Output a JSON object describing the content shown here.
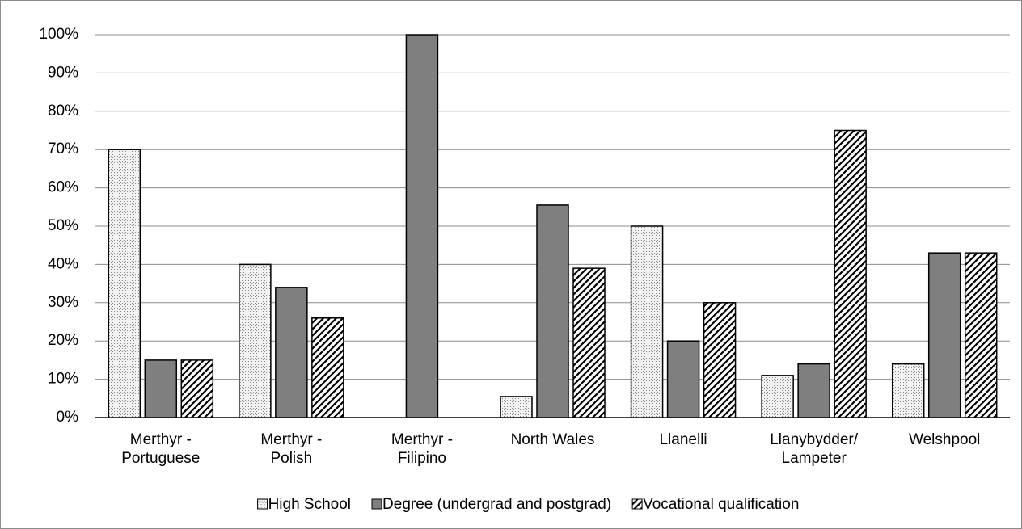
{
  "chart_data": {
    "type": "bar",
    "categories": [
      "Merthyr -\nPortuguese",
      "Merthyr -\nPolish",
      "Merthyr -\nFilipino",
      "North Wales",
      "Llanelli",
      "Llanybydder/\nLampeter",
      "Welshpool"
    ],
    "series": [
      {
        "name": "High School",
        "color": "#f0f0f0",
        "pattern": "dots",
        "values": [
          70,
          40,
          0,
          5.5,
          50,
          11,
          14
        ]
      },
      {
        "name": "Degree (undergrad and postgrad)",
        "color": "#7f7f7f",
        "pattern": "solid",
        "values": [
          15,
          34,
          100,
          55.5,
          20,
          14,
          43
        ]
      },
      {
        "name": "Vocational qualification",
        "color": "#ffffff",
        "pattern": "hatch",
        "values": [
          15,
          26,
          0,
          39,
          30,
          75,
          43
        ]
      }
    ],
    "ylim": [
      0,
      100
    ],
    "yticks": [
      {
        "value": 0,
        "label": "0%"
      },
      {
        "value": 10,
        "label": "10%"
      },
      {
        "value": 20,
        "label": "20%"
      },
      {
        "value": 30,
        "label": "30%"
      },
      {
        "value": 40,
        "label": "40%"
      },
      {
        "value": 50,
        "label": "50%"
      },
      {
        "value": 60,
        "label": "60%"
      },
      {
        "value": 70,
        "label": "70%"
      },
      {
        "value": 80,
        "label": "80%"
      },
      {
        "value": 90,
        "label": "90%"
      },
      {
        "value": 100,
        "label": "100%"
      }
    ],
    "grid": true,
    "legend": "bottom"
  }
}
